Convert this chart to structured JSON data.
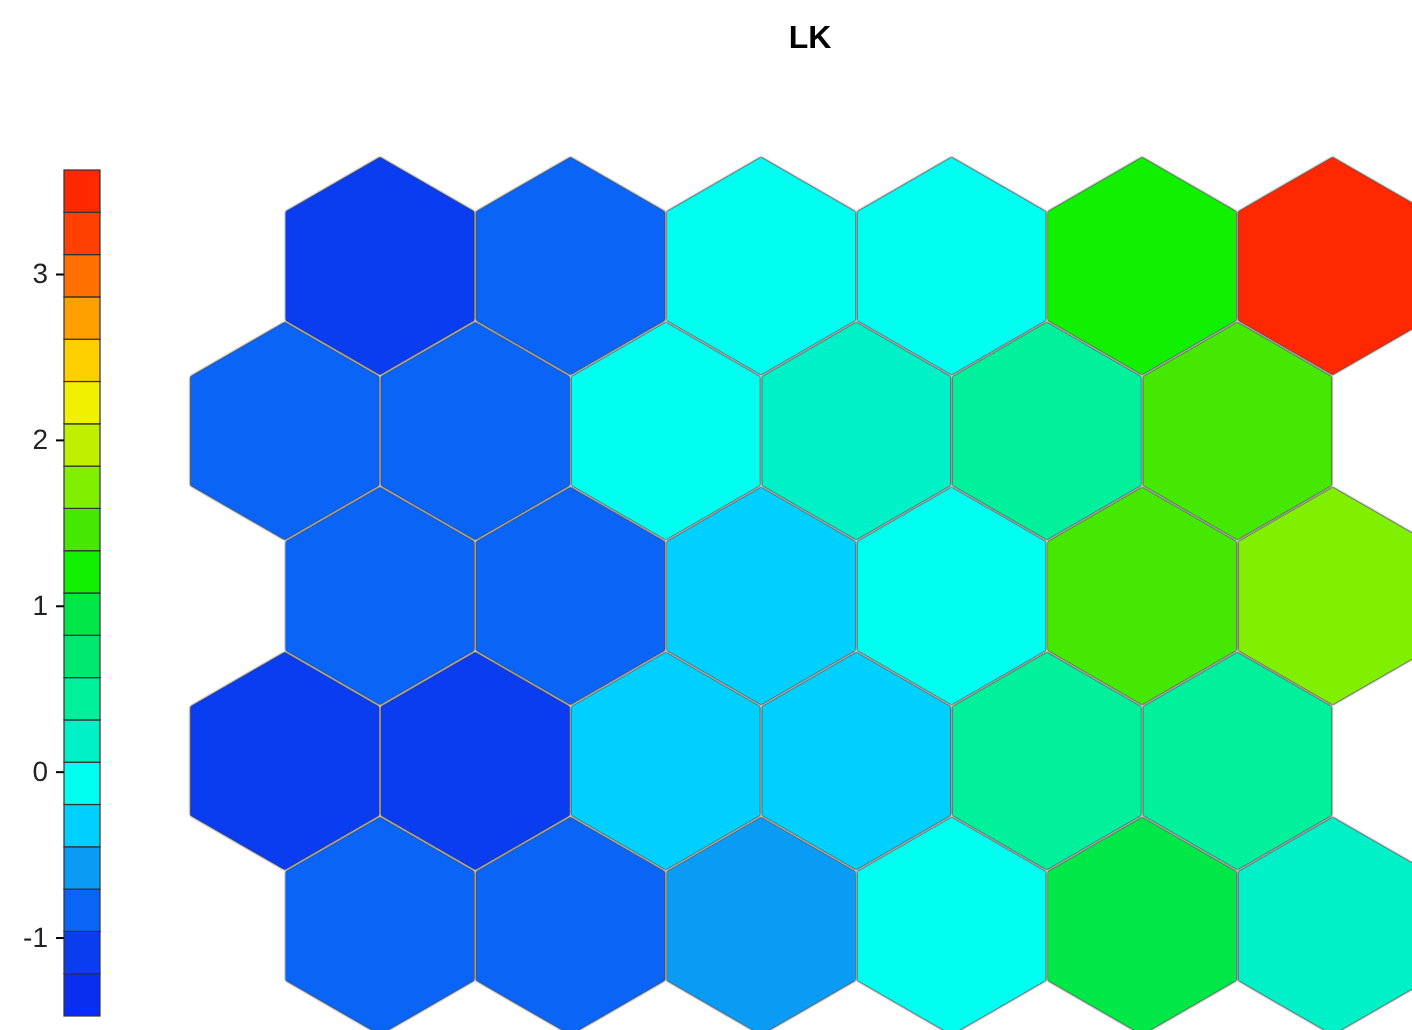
{
  "chart_data": {
    "type": "heatmap",
    "title": "LK",
    "categories": [
      null,
      null,
      null,
      null,
      null,
      null
    ],
    "y_categories": [
      null,
      null,
      null,
      null,
      null
    ],
    "cells": [
      [
        -1.1,
        -0.8,
        -0.1,
        -0.1,
        1.2,
        3.5
      ],
      [
        -0.8,
        -0.8,
        -0.1,
        0.2,
        0.4,
        1.5
      ],
      [
        -0.8,
        -0.8,
        -0.3,
        -0.1,
        1.5,
        1.7
      ],
      [
        -1.1,
        -1.1,
        -0.3,
        -0.3,
        0.4,
        0.4
      ],
      [
        -0.8,
        -0.8,
        -0.6,
        -0.1,
        0.9,
        0.2
      ]
    ],
    "clim": [
      -1.47,
      3.63
    ],
    "cticks": [
      -1,
      0,
      1,
      2,
      3
    ]
  }
}
